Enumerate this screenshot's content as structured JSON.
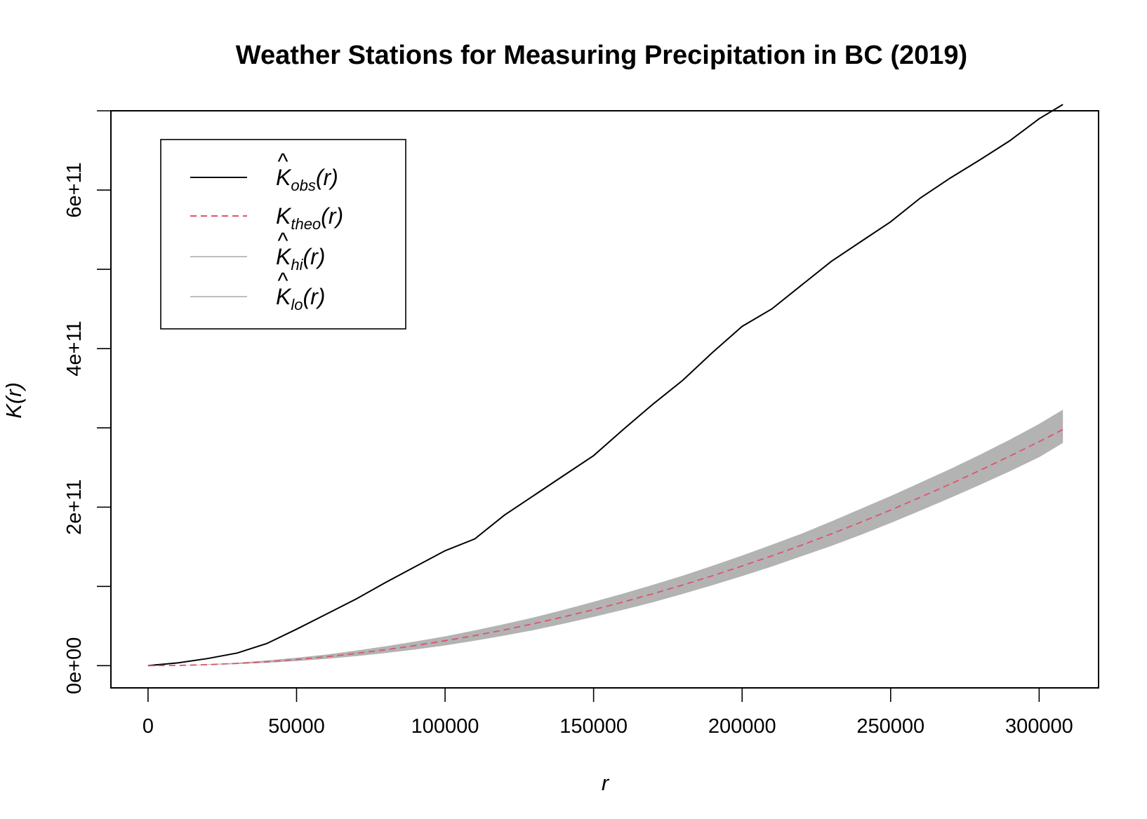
{
  "chart_data": {
    "type": "line",
    "title": "Weather Stations for Measuring Precipitation in BC (2019)",
    "xlabel": "r",
    "ylabel": "K(r)",
    "xlim": [
      -12500,
      320000
    ],
    "ylim": [
      -28000000000,
      700000000000
    ],
    "x_ticks": [
      0,
      50000,
      100000,
      150000,
      200000,
      250000,
      300000
    ],
    "x_tick_labels": [
      "0",
      "50000",
      "100000",
      "150000",
      "200000",
      "250000",
      "300000"
    ],
    "y_ticks": [
      0,
      100000000000,
      200000000000,
      300000000000,
      400000000000,
      500000000000,
      600000000000,
      700000000000
    ],
    "y_tick_labels": [
      "0e+00",
      "",
      "2e+11",
      "",
      "4e+11",
      "",
      "6e+11",
      ""
    ],
    "grid": false,
    "legend_position": "top-left",
    "legend": [
      {
        "symbol": "K",
        "hat": true,
        "sub": "obs",
        "arg": "(r)",
        "color": "#000000",
        "dash": "solid"
      },
      {
        "symbol": "K",
        "hat": false,
        "sub": "theo",
        "arg": "(r)",
        "color": "#DF536B",
        "dash": "dashed"
      },
      {
        "symbol": "K",
        "hat": true,
        "sub": "hi",
        "arg": "(r)",
        "color": "#BEBEBE",
        "dash": "solid"
      },
      {
        "symbol": "K",
        "hat": true,
        "sub": "lo",
        "arg": "(r)",
        "color": "#BEBEBE",
        "dash": "solid"
      }
    ],
    "series": [
      {
        "key": "obs",
        "color": "#000000",
        "x": [
          0,
          10000,
          20000,
          30000,
          40000,
          50000,
          60000,
          70000,
          80000,
          90000,
          100000,
          110000,
          120000,
          130000,
          140000,
          150000,
          160000,
          170000,
          180000,
          190000,
          200000,
          210000,
          220000,
          230000,
          240000,
          250000,
          260000,
          270000,
          280000,
          290000,
          300000,
          308000
        ],
        "values": [
          0,
          3500000000,
          9000000000,
          16000000000,
          28000000000,
          46000000000,
          65000000000,
          84000000000,
          105000000000,
          125000000000,
          145000000000,
          160000000000,
          190000000000,
          215000000000,
          240000000000,
          265000000000,
          298000000000,
          330000000000,
          360000000000,
          395000000000,
          428000000000,
          450000000000,
          480000000000,
          510000000000,
          535000000000,
          560000000000,
          590000000000,
          615000000000,
          638000000000,
          662000000000,
          690000000000,
          708000000000
        ]
      },
      {
        "key": "theo",
        "color": "#DF536B",
        "x": [
          0,
          10000,
          20000,
          30000,
          40000,
          50000,
          60000,
          70000,
          80000,
          90000,
          100000,
          110000,
          120000,
          130000,
          140000,
          150000,
          160000,
          170000,
          180000,
          190000,
          200000,
          210000,
          220000,
          230000,
          240000,
          250000,
          260000,
          270000,
          280000,
          290000,
          300000,
          308000
        ],
        "values": [
          0,
          314000000,
          1260000000,
          2830000000,
          5030000000,
          7850000000,
          11300000000,
          15400000000,
          20100000000,
          25400000000,
          31400000000,
          38000000000,
          45200000000,
          53100000000,
          61600000000,
          70700000000,
          80400000000,
          90800000000,
          101800000000,
          113400000000,
          125700000000,
          138500000000,
          152000000000,
          166200000000,
          181000000000,
          196300000000,
          212400000000,
          229000000000,
          246300000000,
          264200000000,
          282700000000,
          298000000000
        ]
      },
      {
        "key": "hi",
        "color": "#BEBEBE",
        "x": [
          0,
          10000,
          20000,
          30000,
          40000,
          50000,
          60000,
          70000,
          80000,
          90000,
          100000,
          110000,
          120000,
          130000,
          140000,
          150000,
          160000,
          170000,
          180000,
          190000,
          200000,
          210000,
          220000,
          230000,
          240000,
          250000,
          260000,
          270000,
          280000,
          290000,
          300000,
          308000
        ],
        "values": [
          0,
          400000000,
          1700000000,
          3800000000,
          6600000000,
          10000000000,
          14000000000,
          19000000000,
          24500000000,
          30500000000,
          37000000000,
          44500000000,
          52500000000,
          61000000000,
          70500000000,
          80500000000,
          91000000000,
          102000000000,
          113500000000,
          126000000000,
          139000000000,
          152500000000,
          166500000000,
          182000000000,
          198000000000,
          214000000000,
          231000000000,
          248000000000,
          266000000000,
          285000000000,
          305000000000,
          323000000000
        ]
      },
      {
        "key": "lo",
        "color": "#BEBEBE",
        "x": [
          0,
          10000,
          20000,
          30000,
          40000,
          50000,
          60000,
          70000,
          80000,
          90000,
          100000,
          110000,
          120000,
          130000,
          140000,
          150000,
          160000,
          170000,
          180000,
          190000,
          200000,
          210000,
          220000,
          230000,
          240000,
          250000,
          260000,
          270000,
          280000,
          290000,
          300000,
          308000
        ],
        "values": [
          0,
          220000000,
          900000000,
          2000000000,
          3600000000,
          5800000000,
          8600000000,
          12000000000,
          16000000000,
          20500000000,
          25500000000,
          31500000000,
          38000000000,
          45000000000,
          53000000000,
          61500000000,
          70500000000,
          80000000000,
          90500000000,
          101500000000,
          113000000000,
          125000000000,
          138000000000,
          151000000000,
          165000000000,
          180000000000,
          195500000000,
          211500000000,
          228000000000,
          245000000000,
          263000000000,
          281000000000
        ]
      }
    ]
  }
}
